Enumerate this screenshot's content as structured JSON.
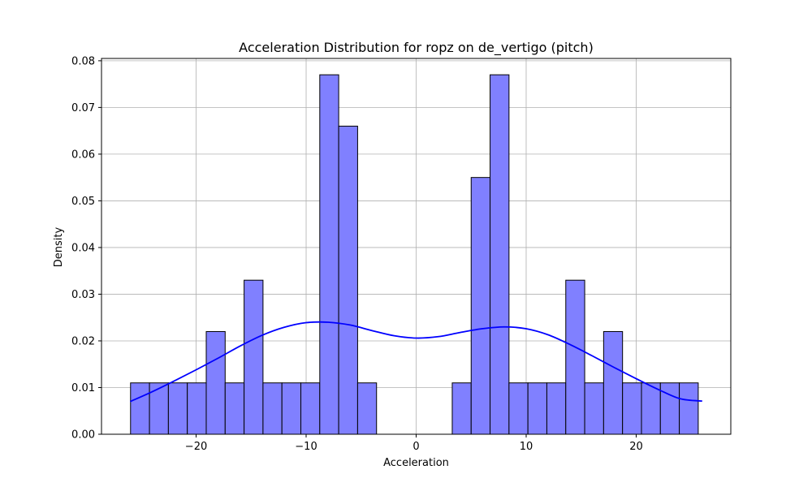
{
  "chart_data": {
    "type": "bar",
    "title": "Acceleration Distribution for ropz on de_vertigo (pitch)",
    "xlabel": "Acceleration",
    "ylabel": "Density",
    "xlim": [
      -28.6,
      28.6
    ],
    "ylim": [
      0,
      0.0805
    ],
    "xticks": [
      -20,
      -10,
      0,
      10,
      20
    ],
    "xtick_labels": [
      "−20",
      "−10",
      "0",
      "10",
      "20"
    ],
    "yticks": [
      0.0,
      0.01,
      0.02,
      0.03,
      0.04,
      0.05,
      0.06,
      0.07,
      0.08
    ],
    "ytick_labels": [
      "0.00",
      "0.01",
      "0.02",
      "0.03",
      "0.04",
      "0.05",
      "0.06",
      "0.07",
      "0.08"
    ],
    "grid": true,
    "bar_color": "#8080ff",
    "edge_color": "#000000",
    "kde_color": "#0000ff",
    "bin_width": 1.72,
    "bin_starts": [
      -25.96,
      -24.24,
      -22.52,
      -20.8,
      -19.08,
      -17.36,
      -15.64,
      -13.92,
      -12.2,
      -10.48,
      -8.76,
      -7.04,
      -5.32,
      -3.6,
      -1.88,
      -0.16,
      1.56,
      3.28,
      5.0,
      6.72,
      8.44,
      10.16,
      11.88,
      13.6,
      15.32,
      17.04,
      18.76,
      20.48,
      22.2,
      23.92
    ],
    "values": [
      0.011,
      0.011,
      0.011,
      0.011,
      0.022,
      0.011,
      0.033,
      0.011,
      0.011,
      0.011,
      0.077,
      0.066,
      0.011,
      0.0,
      0.0,
      0.0,
      0.0,
      0.011,
      0.055,
      0.077,
      0.011,
      0.011,
      0.011,
      0.033,
      0.011,
      0.022,
      0.011,
      0.011,
      0.011,
      0.011
    ],
    "kde": {
      "x": [
        -26,
        -24,
        -22,
        -20,
        -18,
        -16,
        -14,
        -12,
        -10,
        -8,
        -6,
        -4,
        -2,
        0,
        2,
        4,
        6,
        8,
        10,
        12,
        14,
        16,
        18,
        20,
        22,
        24,
        26
      ],
      "y": [
        0.007,
        0.0091,
        0.0114,
        0.0138,
        0.0163,
        0.0189,
        0.0212,
        0.0229,
        0.0239,
        0.024,
        0.0234,
        0.0222,
        0.0211,
        0.0206,
        0.0209,
        0.0218,
        0.0226,
        0.023,
        0.0226,
        0.0213,
        0.0192,
        0.0168,
        0.0143,
        0.0119,
        0.0096,
        0.0076,
        0.0071
      ]
    }
  }
}
